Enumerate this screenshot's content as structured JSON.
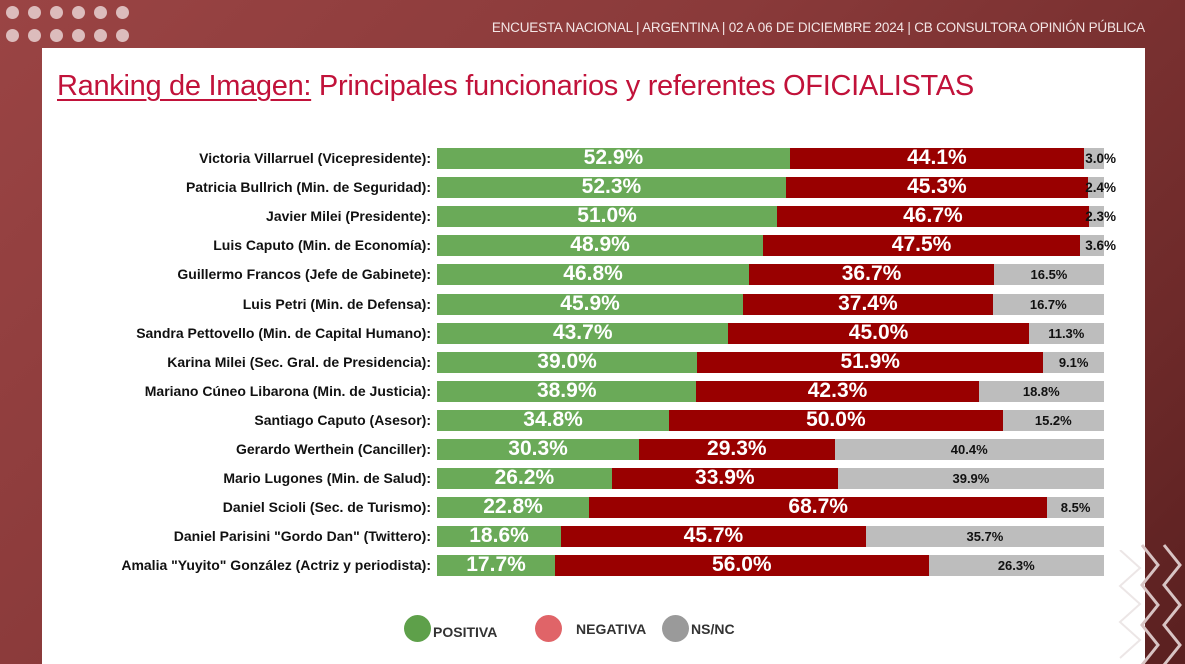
{
  "header": {
    "text": "ENCUESTA NACIONAL  |  ARGENTINA  | 02 A 06 DE DICIEMBRE 2024 | CB CONSULTORA OPINIÓN PÚBLICA"
  },
  "title": {
    "underlined": "Ranking de Imagen:",
    "rest": " Principales funcionarios y referentes OFICIALISTAS"
  },
  "colors": {
    "positive": "#6aaa58",
    "negative": "#990000",
    "nsnc": "#bdbdbd",
    "legend_positive": "#5ea04a",
    "legend_negative": "#e06468",
    "legend_nsnc": "#9a9a9a",
    "title": "#c1123a",
    "frame": "#8a3a3a"
  },
  "chart_data": {
    "type": "bar",
    "orientation": "horizontal",
    "stacked": true,
    "title": "Ranking de Imagen: Principales funcionarios y referentes OFICIALISTAS",
    "xlabel": "",
    "ylabel": "",
    "xlim": [
      0,
      100
    ],
    "grid": false,
    "legend_position": "bottom",
    "categories": [
      "Victoria Villarruel (Vicepresidente):",
      "Patricia Bullrich (Min. de Seguridad):",
      "Javier Milei (Presidente):",
      "Luis Caputo (Min. de Economía):",
      "Guillermo Francos (Jefe de Gabinete):",
      "Luis Petri (Min. de Defensa):",
      "Sandra Pettovello (Min. de Capital Humano):",
      "Karina Milei (Sec. Gral. de Presidencia):",
      "Mariano Cúneo Libarona (Min. de Justicia):",
      "Santiago Caputo (Asesor):",
      "Gerardo Werthein (Canciller):",
      "Mario Lugones (Min. de Salud):",
      "Daniel Scioli (Sec. de Turismo):",
      "Daniel Parisini \"Gordo Dan\" (Twittero):",
      "Amalia \"Yuyito\" González (Actriz y periodista):"
    ],
    "series": [
      {
        "name": "POSITIVA",
        "values": [
          52.9,
          52.3,
          51.0,
          48.9,
          46.8,
          45.9,
          43.7,
          39.0,
          38.9,
          34.8,
          30.3,
          26.2,
          22.8,
          18.6,
          17.7
        ]
      },
      {
        "name": "NEGATIVA",
        "values": [
          44.1,
          45.3,
          46.7,
          47.5,
          36.7,
          37.4,
          45.0,
          51.9,
          42.3,
          50.0,
          29.3,
          33.9,
          68.7,
          45.7,
          56.0
        ]
      },
      {
        "name": "NS/NC",
        "values": [
          3.0,
          2.4,
          2.3,
          3.6,
          16.5,
          16.7,
          11.3,
          9.1,
          18.8,
          15.2,
          40.4,
          39.9,
          8.5,
          35.7,
          26.3
        ]
      }
    ],
    "value_format": "{v}%"
  },
  "legend": [
    {
      "label": "POSITIVA"
    },
    {
      "label": "NEGATIVA"
    },
    {
      "label": "NS/NC"
    }
  ]
}
